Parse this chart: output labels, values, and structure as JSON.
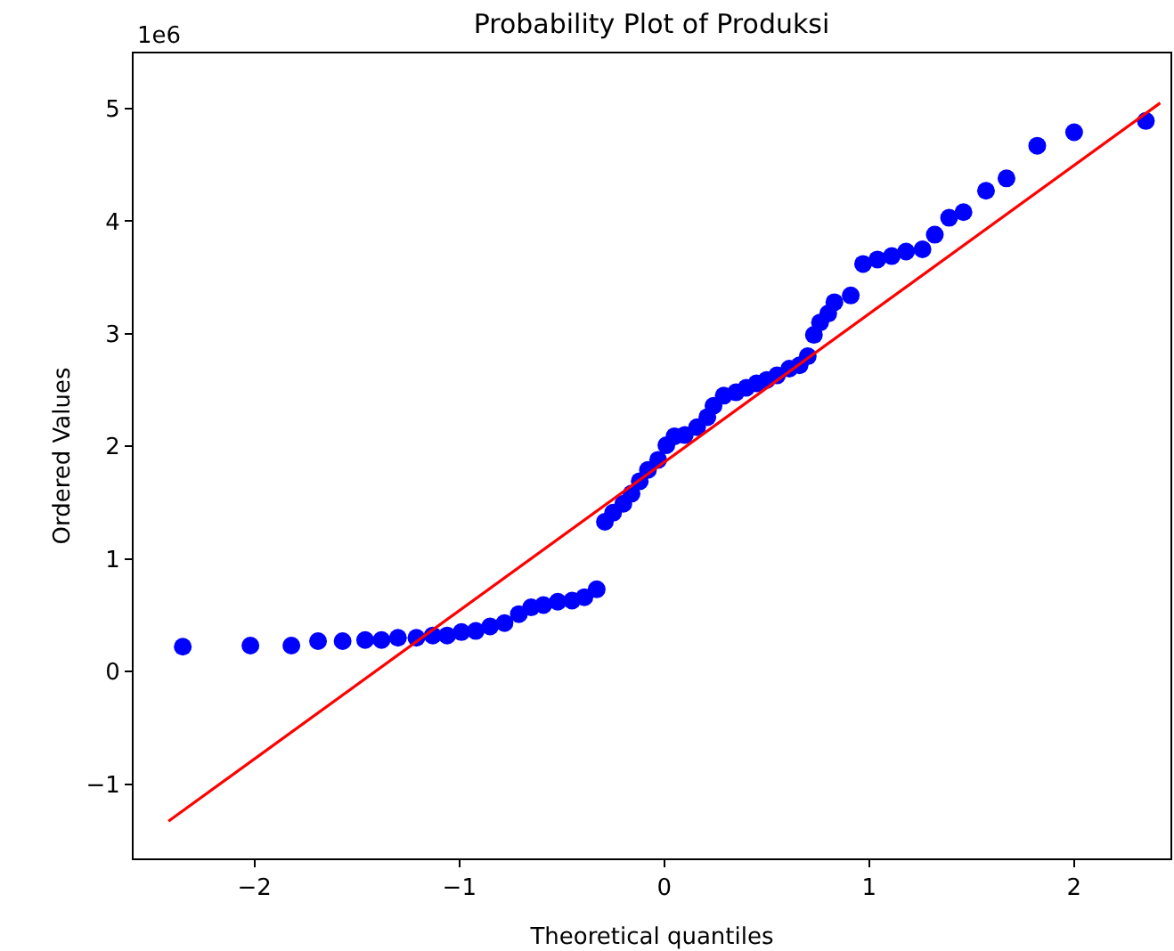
{
  "chart_data": {
    "type": "scatter",
    "title": "Probability Plot of Produksi",
    "xlabel": "Theoretical quantiles",
    "ylabel": "Ordered Values",
    "annotations": [
      "1e6"
    ],
    "xlim": [
      -2.59,
      2.47
    ],
    "xticks": [
      {
        "value": -2,
        "label": "−2"
      },
      {
        "value": -1,
        "label": "−1"
      },
      0,
      1,
      2
    ],
    "ylim": [
      -1.66,
      5.49
    ],
    "yticks": [
      {
        "value": -1,
        "label": "−1"
      },
      0,
      1,
      2,
      3,
      4,
      5
    ],
    "grid": false,
    "legend": false,
    "series": [
      {
        "color": "#0000ff",
        "marker": "circle",
        "x": [
          -2.35,
          -2.02,
          -1.82,
          -1.69,
          -1.57,
          -1.46,
          -1.38,
          -1.3,
          -1.21,
          -1.13,
          -1.06,
          -0.99,
          -0.92,
          -0.85,
          -0.78,
          -0.71,
          -0.65,
          -0.59,
          -0.52,
          -0.45,
          -0.39,
          -0.33,
          -0.29,
          -0.25,
          -0.2,
          -0.16,
          -0.12,
          -0.08,
          -0.03,
          0.01,
          0.05,
          0.1,
          0.16,
          0.21,
          0.24,
          0.29,
          0.35,
          0.4,
          0.45,
          0.5,
          0.55,
          0.61,
          0.66,
          0.7,
          0.73,
          0.76,
          0.8,
          0.83,
          0.91,
          0.97,
          1.04,
          1.11,
          1.18,
          1.26,
          1.32,
          1.39,
          1.46,
          1.57,
          1.67,
          1.82,
          2.0,
          2.35
        ],
        "values": [
          0.22,
          0.23,
          0.23,
          0.27,
          0.27,
          0.28,
          0.28,
          0.3,
          0.3,
          0.32,
          0.32,
          0.35,
          0.36,
          0.4,
          0.43,
          0.51,
          0.57,
          0.59,
          0.62,
          0.63,
          0.66,
          0.73,
          1.33,
          1.41,
          1.49,
          1.58,
          1.69,
          1.79,
          1.88,
          2.01,
          2.09,
          2.1,
          2.17,
          2.26,
          2.36,
          2.45,
          2.48,
          2.52,
          2.56,
          2.59,
          2.63,
          2.69,
          2.72,
          2.8,
          2.99,
          3.1,
          3.18,
          3.28,
          3.34,
          3.62,
          3.66,
          3.69,
          3.73,
          3.75,
          3.88,
          4.03,
          4.08,
          4.27,
          4.38,
          4.67,
          4.79,
          4.89
        ]
      },
      {
        "type": "line",
        "marker": "none",
        "color": "#ff0000",
        "x": [
          -2.42,
          2.42
        ],
        "values": [
          -1.33,
          5.05
        ]
      }
    ]
  }
}
